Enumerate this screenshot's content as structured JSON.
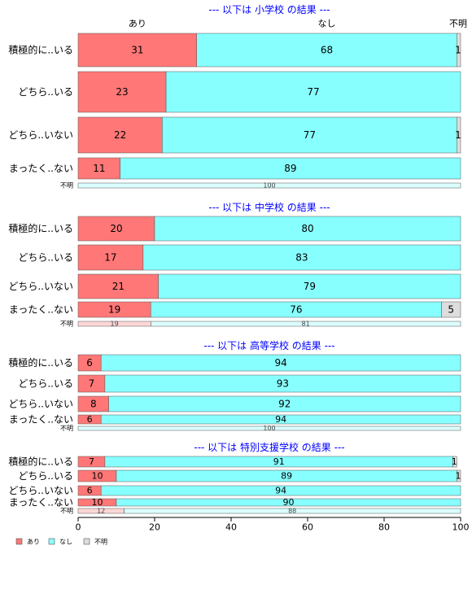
{
  "chart_data": {
    "type": "bar",
    "orientation": "horizontal-stacked-percent",
    "xlim": [
      0,
      100
    ],
    "xticks": [
      0,
      20,
      40,
      60,
      80,
      100
    ],
    "top_category_labels": [
      "あり",
      "なし",
      "不明"
    ],
    "colors": {
      "あり": "#ff7777",
      "なし": "#88ffff",
      "不明": "#dddddd",
      "title": "#0000ff"
    },
    "legend": {
      "position": "bottom-left",
      "items": [
        "あり",
        "なし",
        "不明"
      ]
    },
    "panels": [
      {
        "title": "--- 以下は 小学校 の結果 ---",
        "rows": [
          {
            "label": "積極的に..いる",
            "values": [
              31,
              68,
              1
            ]
          },
          {
            "label": "どちら..いる",
            "values": [
              23,
              77,
              0
            ]
          },
          {
            "label": "どちら..いない",
            "values": [
              22,
              77,
              1
            ]
          },
          {
            "label": "まったく..ない",
            "values": [
              11,
              89,
              0
            ]
          },
          {
            "label": "不明",
            "values": [
              0,
              100,
              0
            ],
            "small": true
          }
        ]
      },
      {
        "title": "--- 以下は 中学校 の結果 ---",
        "rows": [
          {
            "label": "積極的に..いる",
            "values": [
              20,
              80,
              0
            ]
          },
          {
            "label": "どちら..いる",
            "values": [
              17,
              83,
              0
            ]
          },
          {
            "label": "どちら..いない",
            "values": [
              21,
              79,
              0
            ]
          },
          {
            "label": "まったく..ない",
            "values": [
              19,
              76,
              5
            ]
          },
          {
            "label": "不明",
            "values": [
              19,
              81,
              0
            ],
            "small": true
          }
        ]
      },
      {
        "title": "--- 以下は 高等学校 の結果 ---",
        "rows": [
          {
            "label": "積極的に..いる",
            "values": [
              6,
              94,
              0
            ]
          },
          {
            "label": "どちら..いる",
            "values": [
              7,
              93,
              0
            ]
          },
          {
            "label": "どちら..いない",
            "values": [
              8,
              92,
              0
            ]
          },
          {
            "label": "まったく..ない",
            "values": [
              6,
              94,
              0
            ]
          },
          {
            "label": "不明",
            "values": [
              0,
              100,
              0
            ],
            "small": true
          }
        ]
      },
      {
        "title": "--- 以下は 特別支援学校 の結果 ---",
        "rows": [
          {
            "label": "積極的に..いる",
            "values": [
              7,
              91,
              1
            ]
          },
          {
            "label": "どちら..いる",
            "values": [
              10,
              89,
              1
            ]
          },
          {
            "label": "どちら..いない",
            "values": [
              6,
              94,
              0
            ]
          },
          {
            "label": "まったく..ない",
            "values": [
              10,
              90,
              0
            ]
          },
          {
            "label": "不明",
            "values": [
              12,
              88,
              0
            ],
            "small": true
          }
        ]
      }
    ]
  }
}
